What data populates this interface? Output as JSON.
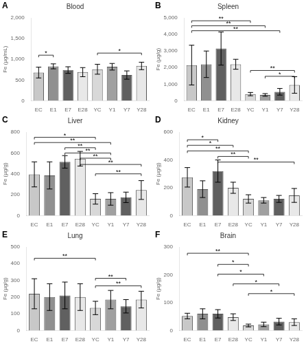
{
  "chart_data": [
    {
      "type": "bar",
      "panel_label": "A",
      "title": "Blood",
      "y_label": "Fe (µg/mL)",
      "categories": [
        "EC",
        "E1",
        "E7",
        "E28",
        "YC",
        "Y1",
        "Y7",
        "Y28"
      ],
      "values": [
        680,
        830,
        740,
        690,
        760,
        820,
        620,
        840
      ],
      "errors": [
        130,
        60,
        80,
        110,
        120,
        80,
        100,
        90
      ],
      "colors": [
        "#c8c8c8",
        "#909090",
        "#606060",
        "#e8e8e8",
        "#d8d8d8",
        "#a0a0a0",
        "#606060",
        "#e8e8e8"
      ],
      "ylim": [
        0,
        2000
      ],
      "yticks": [
        0,
        500,
        {
          "value": 1000,
          "label": "1,000"
        },
        {
          "value": 1500,
          "label": "1,500"
        },
        {
          "value": 2000,
          "label": "2,000"
        }
      ],
      "grid": false,
      "annotations": [
        {
          "from": "EC",
          "to": "E1",
          "y": 1050,
          "label": "*"
        },
        {
          "from": "YC",
          "to": "Y28",
          "y": 1100,
          "label": "*"
        }
      ]
    },
    {
      "type": "bar",
      "panel_label": "B",
      "title": "Spleen",
      "y_label": "Fe (µg/g)",
      "categories": [
        "EC",
        "E1",
        "E7",
        "E28",
        "YC",
        "Y1",
        "Y7",
        "Y28"
      ],
      "values": [
        2150,
        2200,
        3150,
        2200,
        400,
        350,
        540,
        950
      ],
      "errors": [
        1200,
        800,
        1000,
        300,
        100,
        80,
        200,
        500
      ],
      "colors": [
        "#c8c8c8",
        "#909090",
        "#606060",
        "#e8e8e8",
        "#d8d8d8",
        "#a0a0a0",
        "#606060",
        "#e8e8e8"
      ],
      "ylim": [
        0,
        5000
      ],
      "yticks": [
        0,
        {
          "value": 1000,
          "label": "1,000"
        },
        {
          "value": 2000,
          "label": "2,000"
        },
        {
          "value": 3000,
          "label": "3,000"
        },
        {
          "value": 4000,
          "label": "4,000"
        },
        {
          "value": 5000,
          "label": "5,000"
        }
      ],
      "grid": false,
      "annotations": [
        {
          "from": "EC",
          "to": "YC",
          "y": 4700,
          "label": "**"
        },
        {
          "from": "EC",
          "to": "Y1",
          "y": 4400,
          "label": "**"
        },
        {
          "from": "EC",
          "to": "Y7",
          "y": 4100,
          "label": "**"
        },
        {
          "from": "YC",
          "to": "Y28",
          "y": 1700,
          "label": "**"
        },
        {
          "from": "Y1",
          "to": "Y28",
          "y": 1350,
          "label": "*"
        }
      ]
    },
    {
      "type": "bar",
      "panel_label": "C",
      "title": "Liver",
      "y_label": "Fe (µg/g)",
      "categories": [
        "EC",
        "E1",
        "E7",
        "E28",
        "YC",
        "Y1",
        "Y7",
        "Y28"
      ],
      "values": [
        395,
        385,
        515,
        545,
        160,
        160,
        175,
        245
      ],
      "errors": [
        120,
        130,
        60,
        70,
        50,
        60,
        50,
        90
      ],
      "colors": [
        "#c8c8c8",
        "#909090",
        "#606060",
        "#e8e8e8",
        "#d8d8d8",
        "#a0a0a0",
        "#606060",
        "#e8e8e8"
      ],
      "ylim": [
        0,
        800
      ],
      "yticks": [
        0,
        200,
        400,
        600,
        800
      ],
      "grid": false,
      "annotations": [
        {
          "from": "EC",
          "to": "YC",
          "y": 730,
          "label": "*"
        },
        {
          "from": "EC",
          "to": "Y1",
          "y": 680,
          "label": "**"
        },
        {
          "from": "E7",
          "to": "YC",
          "y": 630,
          "label": "**"
        },
        {
          "from": "E7",
          "to": "Y1",
          "y": 580,
          "label": "**"
        },
        {
          "from": "E28",
          "to": "Y1",
          "y": 530,
          "label": "**"
        },
        {
          "from": "E28",
          "to": "Y28",
          "y": 470,
          "label": "**"
        },
        {
          "from": "YC",
          "to": "Y28",
          "y": 380,
          "label": "**"
        }
      ]
    },
    {
      "type": "bar",
      "panel_label": "D",
      "title": "Kidney",
      "y_label": "Fe (µg/g)",
      "categories": [
        "EC",
        "E1",
        "E7",
        "E28",
        "YC",
        "Y1",
        "Y7",
        "Y28"
      ],
      "values": [
        275,
        190,
        320,
        200,
        120,
        110,
        120,
        145
      ],
      "errors": [
        70,
        60,
        80,
        40,
        30,
        20,
        25,
        50
      ],
      "colors": [
        "#c8c8c8",
        "#909090",
        "#606060",
        "#e8e8e8",
        "#d8d8d8",
        "#a0a0a0",
        "#606060",
        "#e8e8e8"
      ],
      "ylim": [
        0,
        600
      ],
      "yticks": [
        0,
        200,
        400,
        600
      ],
      "grid": false,
      "annotations": [
        {
          "from": "EC",
          "to": "E7",
          "y": 530,
          "label": "*"
        },
        {
          "from": "EC",
          "to": "E28",
          "y": 490,
          "label": "*"
        },
        {
          "from": "EC",
          "to": "YC",
          "y": 450,
          "label": "**"
        },
        {
          "from": "E7",
          "to": "YC",
          "y": 410,
          "label": "**"
        },
        {
          "from": "E7",
          "to": "Y28",
          "y": 370,
          "label": "**"
        }
      ]
    },
    {
      "type": "bar",
      "panel_label": "E",
      "title": "Lung",
      "y_label": "Fe (µg/g)",
      "categories": [
        "EC",
        "E1",
        "E7",
        "E28",
        "YC",
        "Y1",
        "Y7",
        "Y28"
      ],
      "values": [
        220,
        200,
        210,
        200,
        135,
        185,
        145,
        185
      ],
      "errors": [
        90,
        80,
        80,
        80,
        40,
        55,
        40,
        50
      ],
      "colors": [
        "#c8c8c8",
        "#909090",
        "#606060",
        "#e8e8e8",
        "#d8d8d8",
        "#a0a0a0",
        "#606060",
        "#e8e8e8"
      ],
      "ylim": [
        0,
        500
      ],
      "yticks": [
        0,
        100,
        200,
        300,
        400,
        500
      ],
      "grid": false,
      "annotations": [
        {
          "from": "EC",
          "to": "YC",
          "y": 420,
          "label": "**"
        },
        {
          "from": "YC",
          "to": "Y7",
          "y": 300,
          "label": "**"
        },
        {
          "from": "YC",
          "to": "Y28",
          "y": 255,
          "label": "**"
        }
      ]
    },
    {
      "type": "bar",
      "panel_label": "F",
      "title": "Brain",
      "y_label": "Fe (µg/g)",
      "categories": [
        "EC",
        "E1",
        "E7",
        "E28",
        "YC",
        "Y1",
        "Y7",
        "Y28"
      ],
      "values": [
        52,
        60,
        60,
        48,
        18,
        22,
        32,
        30
      ],
      "errors": [
        10,
        18,
        15,
        12,
        5,
        8,
        12,
        12
      ],
      "colors": [
        "#c8c8c8",
        "#909090",
        "#606060",
        "#e8e8e8",
        "#d8d8d8",
        "#a0a0a0",
        "#606060",
        "#e8e8e8"
      ],
      "ylim": [
        0,
        300
      ],
      "yticks": [
        0,
        100,
        200,
        300
      ],
      "grid": false,
      "annotations": [
        {
          "from": "EC",
          "to": "YC",
          "y": 270,
          "label": "**"
        },
        {
          "from": "E7",
          "to": "YC",
          "y": 230,
          "label": "*"
        },
        {
          "from": "E7",
          "to": "Y1",
          "y": 195,
          "label": "*"
        },
        {
          "from": "E28",
          "to": "Y7",
          "y": 160,
          "label": "*"
        },
        {
          "from": "YC",
          "to": "Y28",
          "y": 125,
          "label": "*"
        }
      ]
    }
  ]
}
